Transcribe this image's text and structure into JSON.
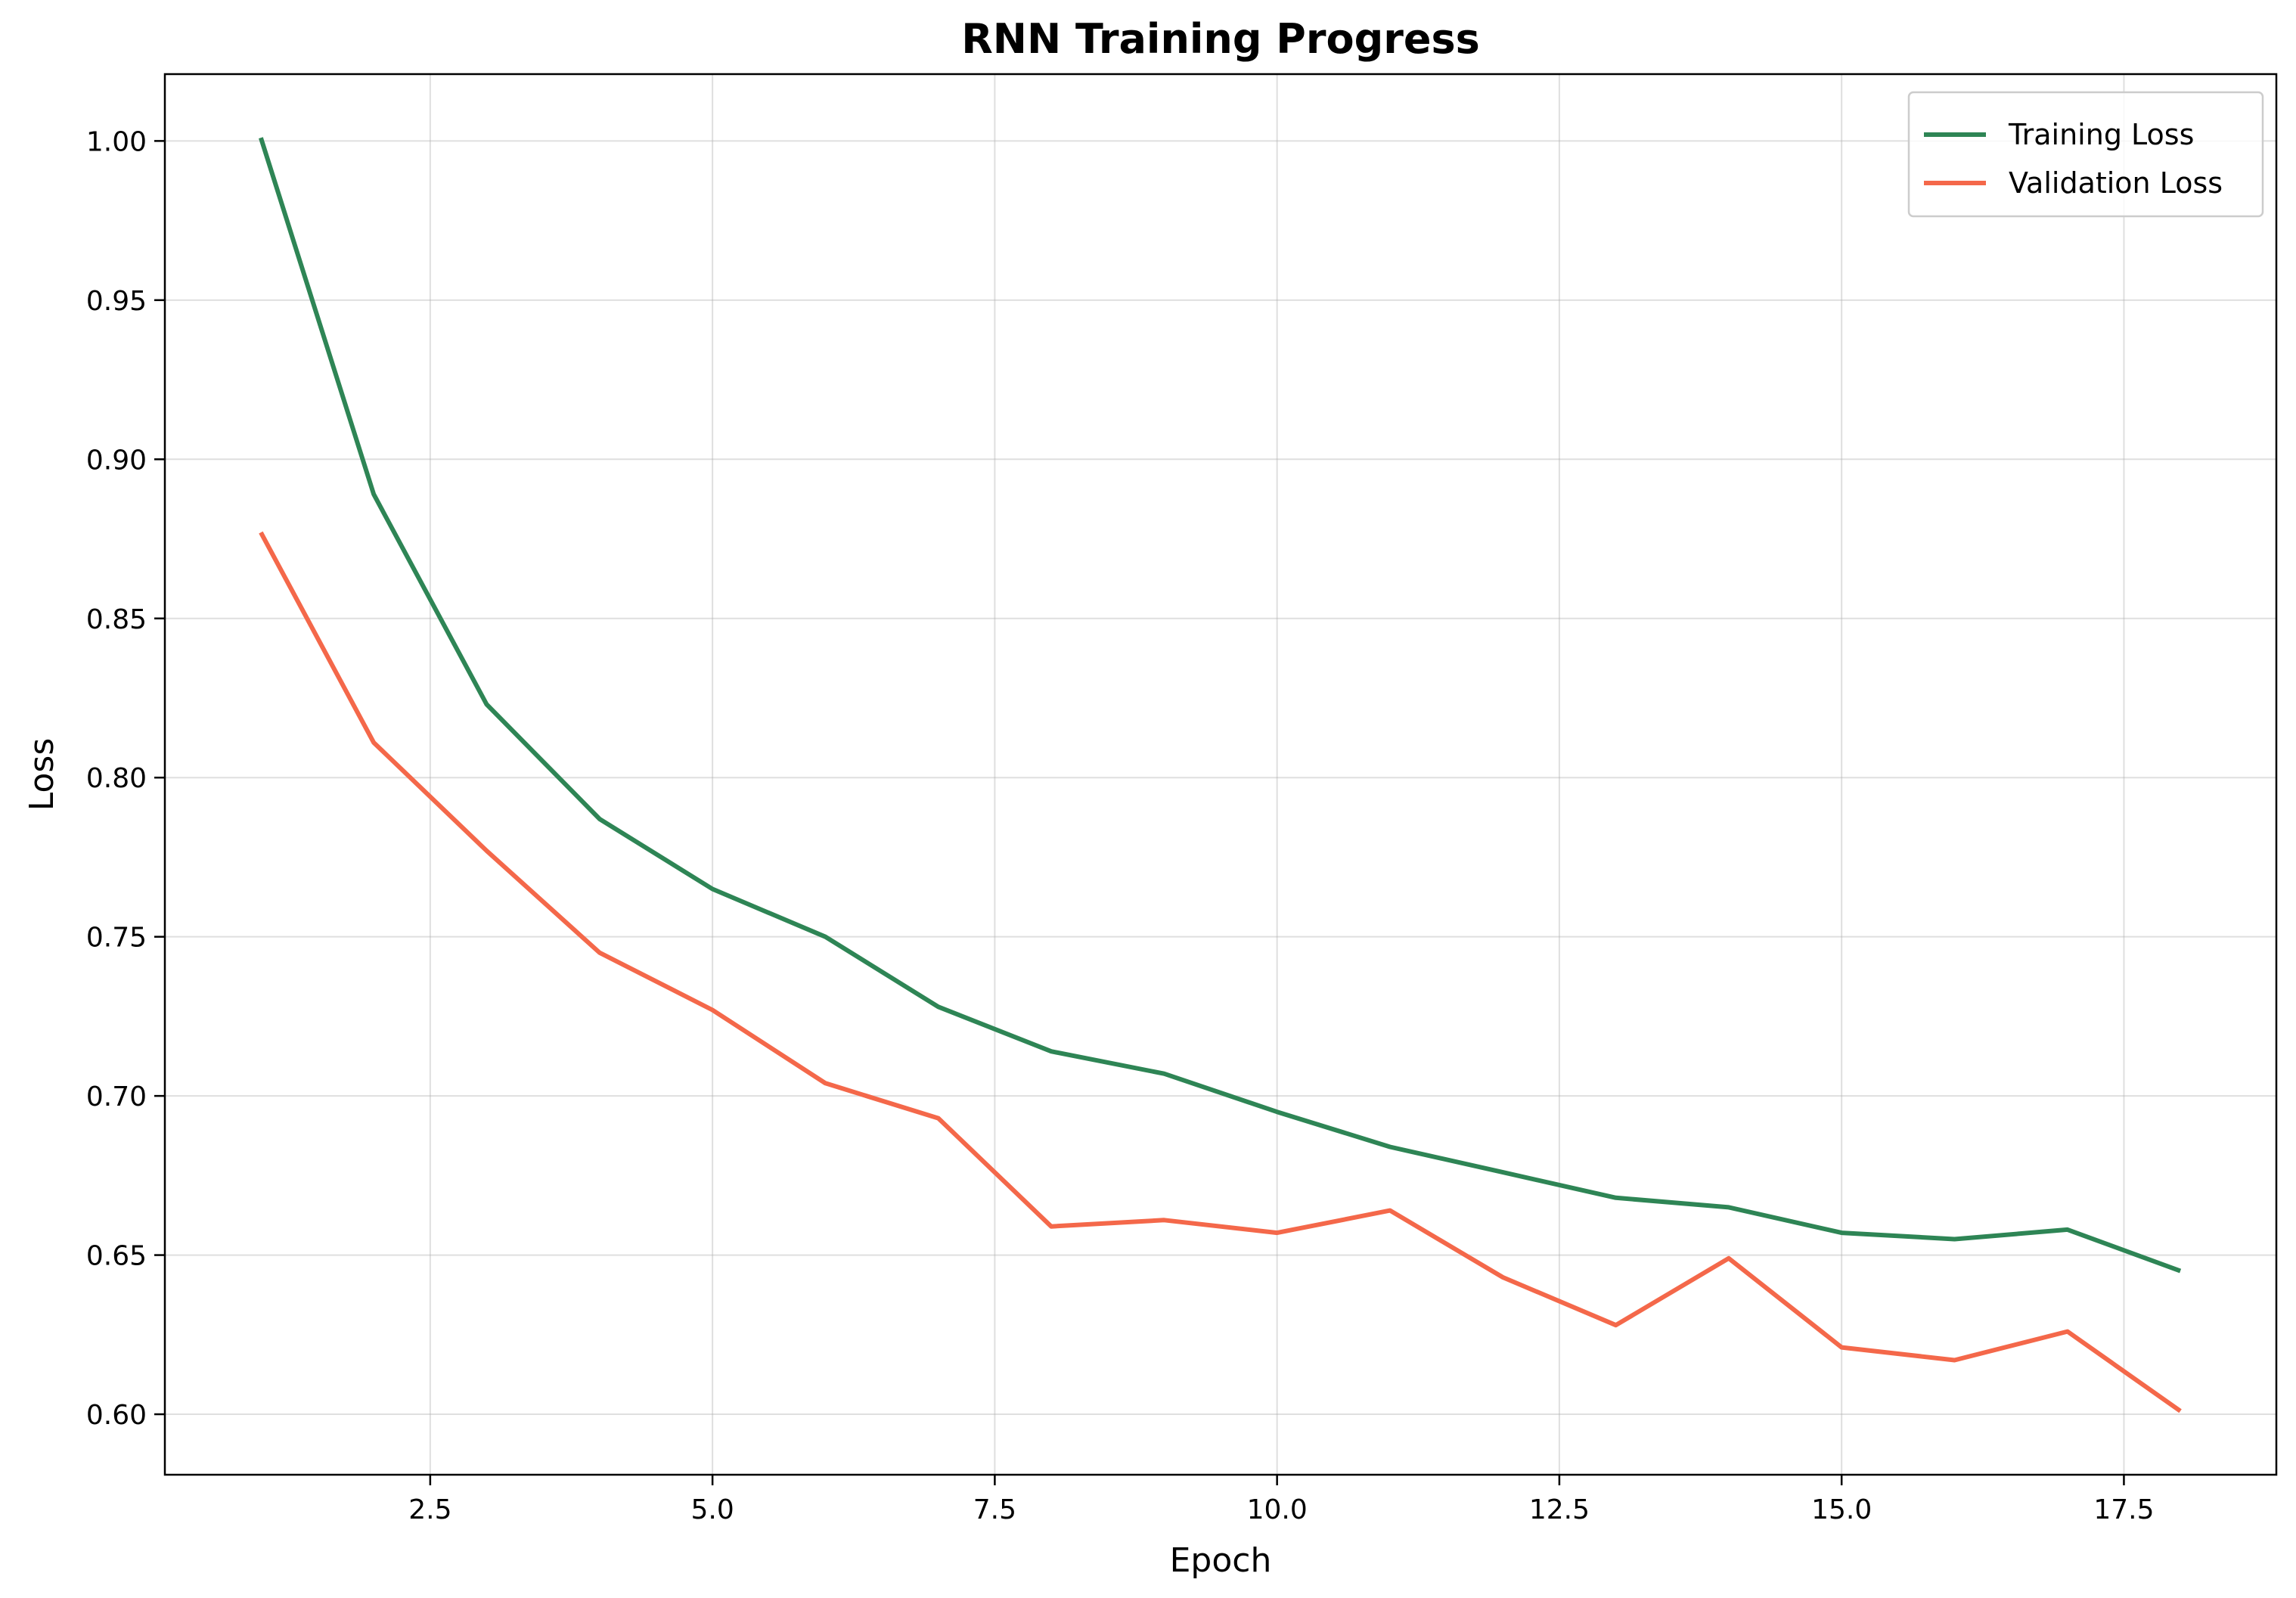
{
  "chart_data": {
    "type": "line",
    "title": "RNN Training Progress",
    "xlabel": "Epoch",
    "ylabel": "Loss",
    "x": [
      1,
      2,
      3,
      4,
      5,
      6,
      7,
      8,
      9,
      10,
      11,
      12,
      13,
      14,
      15,
      16,
      17,
      18
    ],
    "xlim": [
      0.15,
      18.85
    ],
    "ylim": [
      0.581,
      1.021
    ],
    "xticks": [
      2.5,
      5.0,
      7.5,
      10.0,
      12.5,
      15.0,
      17.5
    ],
    "xtick_labels": [
      "2.5",
      "5.0",
      "7.5",
      "10.0",
      "12.5",
      "15.0",
      "17.5"
    ],
    "yticks": [
      0.6,
      0.65,
      0.7,
      0.75,
      0.8,
      0.85,
      0.9,
      0.95,
      1.0
    ],
    "ytick_labels": [
      "0.60",
      "0.65",
      "0.70",
      "0.75",
      "0.80",
      "0.85",
      "0.90",
      "0.95",
      "1.00"
    ],
    "grid": true,
    "legend_position": "top-right",
    "series": [
      {
        "name": "Training Loss",
        "color": "#2e8555",
        "values": [
          1.001,
          0.889,
          0.823,
          0.787,
          0.765,
          0.75,
          0.728,
          0.714,
          0.707,
          0.695,
          0.684,
          0.676,
          0.668,
          0.665,
          0.657,
          0.655,
          0.658,
          0.645
        ]
      },
      {
        "name": "Validation Loss",
        "color": "#f4684a",
        "values": [
          0.877,
          0.811,
          0.777,
          0.745,
          0.727,
          0.704,
          0.693,
          0.659,
          0.661,
          0.657,
          0.664,
          0.643,
          0.628,
          0.649,
          0.621,
          0.617,
          0.626,
          0.601
        ]
      }
    ]
  }
}
